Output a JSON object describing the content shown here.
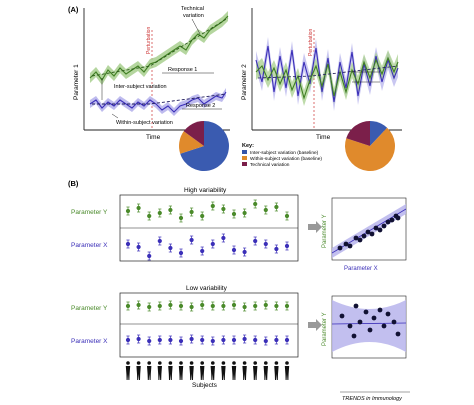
{
  "panel_a": {
    "label": "(A)",
    "left": {
      "ylabel": "Parameter 1",
      "xlabel": "Time",
      "perturbation": "Perturbation",
      "technical_label_1": "Technical",
      "technical_label_2": "variation",
      "response1": "Response 1",
      "inter_subject": "Inter-subject variation",
      "response2": "Response 2",
      "within_subject": "Within-subject variation"
    },
    "right": {
      "ylabel": "Parameter 2",
      "xlabel": "Time",
      "perturbation": "Perturbation"
    },
    "key": {
      "title": "Key:",
      "items": [
        {
          "label": "Inter-subject variation (baseline)",
          "color": "#3355aa"
        },
        {
          "label": "Within-subject variation (baseline)",
          "color": "#dd8a2a"
        },
        {
          "label": "Technical variation",
          "color": "#7b1f4a"
        }
      ]
    },
    "pie_left": [
      {
        "name": "Inter-subject variation (baseline)",
        "value": 0.7,
        "color": "#3a5bb0"
      },
      {
        "name": "Within-subject variation (baseline)",
        "value": 0.15,
        "color": "#e08a2c"
      },
      {
        "name": "Technical variation",
        "value": 0.15,
        "color": "#7b1f4a"
      }
    ],
    "pie_right": [
      {
        "name": "Inter-subject variation (baseline)",
        "value": 0.12,
        "color": "#3a5bb0"
      },
      {
        "name": "Within-subject variation (baseline)",
        "value": 0.68,
        "color": "#e08a2c"
      },
      {
        "name": "Technical variation",
        "value": 0.2,
        "color": "#7b1f4a"
      }
    ]
  },
  "panel_b": {
    "label": "(B)",
    "high_title": "High variability",
    "low_title": "Low variability",
    "param_y": "Parameter Y",
    "param_x": "Parameter X",
    "subjects": "Subjects",
    "scatter_xlabel": "Parameter X",
    "scatter_ylabel": "Parameter Y"
  },
  "footer": "TRENDS in Immunology",
  "colors": {
    "green": "#4a8a2a",
    "green_band": "#a8cf8e",
    "blue": "#3b2fb8",
    "blue_band": "#b7b4ec",
    "perturbation": "#cc3333",
    "dots": "#111133"
  }
}
